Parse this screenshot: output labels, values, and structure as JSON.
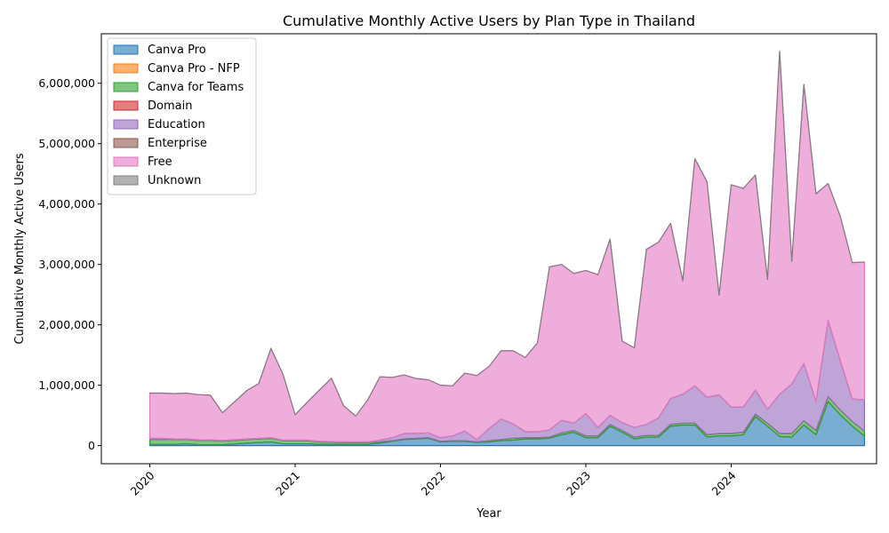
{
  "chart_data": {
    "type": "area",
    "stacked": true,
    "title": "Cumulative Monthly Active Users by Plan Type in Thailand",
    "xlabel": "Year",
    "ylabel": "Cumulative Monthly Active Users",
    "x_ticks": [
      "2020",
      "2021",
      "2022",
      "2023",
      "2024"
    ],
    "y_ticks": [
      "0",
      "1,000,000",
      "2,000,000",
      "3,000,000",
      "4,000,000",
      "5,000,000",
      "6,000,000"
    ],
    "ylim": [
      -300000,
      6820000
    ],
    "xlim": [
      "2019-09",
      "2025-01"
    ],
    "grid": false,
    "legend_position": "upper-left",
    "x": [
      "2020-01",
      "2020-02",
      "2020-03",
      "2020-04",
      "2020-05",
      "2020-06",
      "2020-07",
      "2020-08",
      "2020-09",
      "2020-10",
      "2020-11",
      "2020-12",
      "2021-01",
      "2021-02",
      "2021-03",
      "2021-04",
      "2021-05",
      "2021-06",
      "2021-07",
      "2021-08",
      "2021-09",
      "2021-10",
      "2021-11",
      "2021-12",
      "2022-01",
      "2022-02",
      "2022-03",
      "2022-04",
      "2022-05",
      "2022-06",
      "2022-07",
      "2022-08",
      "2022-09",
      "2022-10",
      "2022-11",
      "2022-12",
      "2023-01",
      "2023-02",
      "2023-03",
      "2023-04",
      "2023-05",
      "2023-06",
      "2023-07",
      "2023-08",
      "2023-09",
      "2023-10",
      "2023-11",
      "2023-12",
      "2024-01",
      "2024-02",
      "2024-03",
      "2024-04",
      "2024-05",
      "2024-06",
      "2024-07",
      "2024-08",
      "2024-09",
      "2024-10",
      "2024-11",
      "2024-12"
    ],
    "series": [
      {
        "name": "Canva Pro",
        "color": "#1f77b4",
        "values": [
          20000,
          20000,
          20000,
          30000,
          15000,
          15000,
          15000,
          25000,
          40000,
          50000,
          60000,
          30000,
          30000,
          30000,
          20000,
          20000,
          20000,
          20000,
          20000,
          40000,
          70000,
          100000,
          110000,
          120000,
          60000,
          70000,
          70000,
          50000,
          60000,
          80000,
          90000,
          110000,
          110000,
          120000,
          180000,
          220000,
          130000,
          130000,
          320000,
          220000,
          110000,
          140000,
          140000,
          320000,
          340000,
          340000,
          140000,
          160000,
          160000,
          180000,
          480000,
          320000,
          150000,
          140000,
          340000,
          180000,
          730000,
          510000,
          320000,
          160000
        ]
      },
      {
        "name": "Canva Pro - NFP",
        "color": "#ff7f0e",
        "values": [
          0,
          0,
          0,
          0,
          0,
          0,
          0,
          0,
          0,
          0,
          0,
          0,
          0,
          0,
          0,
          0,
          0,
          0,
          0,
          0,
          0,
          0,
          0,
          0,
          0,
          0,
          0,
          0,
          0,
          0,
          0,
          0,
          0,
          0,
          0,
          0,
          0,
          0,
          0,
          0,
          0,
          0,
          0,
          0,
          0,
          0,
          0,
          0,
          0,
          0,
          0,
          0,
          0,
          0,
          0,
          0,
          0,
          0,
          0,
          0
        ]
      },
      {
        "name": "Canva for Teams",
        "color": "#2ca02c",
        "values": [
          80000,
          80000,
          80000,
          70000,
          70000,
          70000,
          60000,
          60000,
          60000,
          60000,
          60000,
          50000,
          50000,
          50000,
          40000,
          35000,
          30000,
          30000,
          30000,
          20000,
          10000,
          10000,
          10000,
          10000,
          10000,
          10000,
          10000,
          10000,
          20000,
          20000,
          30000,
          20000,
          20000,
          20000,
          30000,
          30000,
          30000,
          30000,
          30000,
          30000,
          30000,
          30000,
          30000,
          30000,
          30000,
          30000,
          40000,
          40000,
          40000,
          40000,
          40000,
          50000,
          50000,
          60000,
          70000,
          70000,
          80000,
          80000,
          80000,
          80000
        ]
      },
      {
        "name": "Domain",
        "color": "#d62728",
        "values": [
          0,
          0,
          0,
          0,
          0,
          0,
          0,
          0,
          0,
          0,
          0,
          0,
          0,
          0,
          0,
          0,
          0,
          0,
          0,
          0,
          0,
          0,
          0,
          0,
          0,
          0,
          0,
          0,
          0,
          0,
          0,
          0,
          0,
          0,
          0,
          0,
          0,
          0,
          0,
          0,
          0,
          0,
          0,
          0,
          0,
          0,
          0,
          0,
          0,
          0,
          0,
          0,
          0,
          0,
          0,
          0,
          0,
          0,
          0,
          0
        ]
      },
      {
        "name": "Education",
        "color": "#9467bd",
        "values": [
          20000,
          20000,
          10000,
          10000,
          10000,
          10000,
          10000,
          10000,
          10000,
          10000,
          10000,
          10000,
          10000,
          10000,
          10000,
          10000,
          10000,
          10000,
          10000,
          30000,
          50000,
          90000,
          80000,
          80000,
          60000,
          80000,
          160000,
          40000,
          200000,
          340000,
          240000,
          100000,
          100000,
          120000,
          210000,
          120000,
          370000,
          140000,
          150000,
          130000,
          160000,
          180000,
          290000,
          430000,
          480000,
          620000,
          620000,
          640000,
          440000,
          420000,
          400000,
          230000,
          650000,
          820000,
          950000,
          480000,
          1260000,
          820000,
          370000,
          520000
        ]
      },
      {
        "name": "Enterprise",
        "color": "#8c564b",
        "values": [
          0,
          0,
          0,
          0,
          0,
          0,
          0,
          0,
          0,
          0,
          0,
          0,
          0,
          0,
          0,
          0,
          0,
          0,
          0,
          0,
          0,
          0,
          0,
          0,
          0,
          0,
          0,
          0,
          0,
          0,
          0,
          0,
          0,
          0,
          0,
          0,
          0,
          0,
          0,
          0,
          0,
          0,
          0,
          0,
          0,
          0,
          0,
          0,
          0,
          0,
          0,
          0,
          0,
          0,
          0,
          0,
          0,
          0,
          0,
          0
        ]
      },
      {
        "name": "Free",
        "color": "#e377c2",
        "values": [
          750000,
          750000,
          750000,
          760000,
          750000,
          740000,
          460000,
          630000,
          800000,
          910000,
          1480000,
          1090000,
          420000,
          630000,
          850000,
          1050000,
          600000,
          430000,
          700000,
          1050000,
          1000000,
          970000,
          910000,
          880000,
          870000,
          830000,
          960000,
          1060000,
          1030000,
          1130000,
          1210000,
          1230000,
          1470000,
          2700000,
          2580000,
          2480000,
          2370000,
          2530000,
          2920000,
          1350000,
          1320000,
          2900000,
          2910000,
          2900000,
          1880000,
          3760000,
          3570000,
          1650000,
          3680000,
          3620000,
          3560000,
          2150000,
          5680000,
          2030000,
          4620000,
          3440000,
          2270000,
          2390000,
          2260000,
          2280000
        ]
      },
      {
        "name": "Unknown",
        "color": "#7f7f7f",
        "values": [
          0,
          0,
          0,
          0,
          0,
          0,
          0,
          0,
          0,
          0,
          0,
          0,
          0,
          0,
          0,
          0,
          0,
          0,
          0,
          0,
          0,
          0,
          0,
          0,
          0,
          0,
          0,
          0,
          0,
          0,
          0,
          0,
          0,
          0,
          0,
          0,
          0,
          0,
          0,
          0,
          0,
          0,
          0,
          0,
          0,
          0,
          0,
          0,
          0,
          0,
          0,
          0,
          0,
          0,
          0,
          0,
          0,
          0,
          0,
          0
        ]
      }
    ]
  }
}
